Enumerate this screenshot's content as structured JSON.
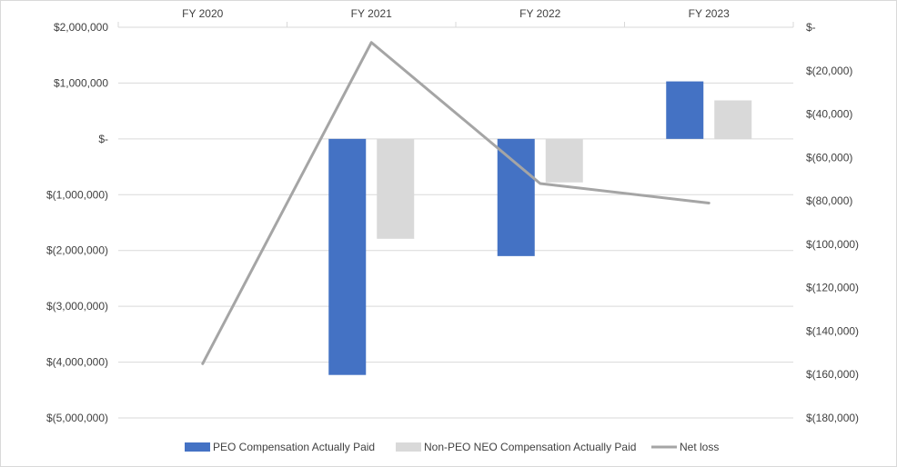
{
  "chart_data": {
    "type": "bar",
    "categories": [
      "FY 2020",
      "FY 2021",
      "FY 2022",
      "FY 2023"
    ],
    "series": [
      {
        "name": "PEO Compensation Actually Paid",
        "kind": "bar",
        "axis": "left",
        "color": "#4472C4",
        "values": [
          null,
          -4230000,
          -2100000,
          1030000
        ]
      },
      {
        "name": "Non-PEO NEO Compensation Actually Paid",
        "kind": "bar",
        "axis": "left",
        "color": "#D9D9D9",
        "values": [
          null,
          -1790000,
          -780000,
          690000
        ]
      },
      {
        "name": "Net loss",
        "kind": "line",
        "axis": "right",
        "color": "#A5A5A5",
        "values": [
          -155000,
          -7000,
          -72000,
          -81000
        ]
      }
    ],
    "left_axis": {
      "ylim": [
        -5000000,
        2000000
      ],
      "ticks": [
        2000000,
        1000000,
        0,
        -1000000,
        -2000000,
        -3000000,
        -4000000,
        -5000000
      ],
      "tick_labels": [
        "$2,000,000",
        "$1,000,000",
        "$-",
        "$(1,000,000)",
        "$(2,000,000)",
        "$(3,000,000)",
        "$(4,000,000)",
        "$(5,000,000)"
      ]
    },
    "right_axis": {
      "ylim": [
        -180000,
        0
      ],
      "ticks": [
        0,
        -20000,
        -40000,
        -60000,
        -80000,
        -100000,
        -120000,
        -140000,
        -160000,
        -180000
      ],
      "tick_labels": [
        "$-",
        "$(20,000)",
        "$(40,000)",
        "$(60,000)",
        "$(80,000)",
        "$(100,000)",
        "$(120,000)",
        "$(140,000)",
        "$(160,000)",
        "$(180,000)"
      ]
    },
    "category_axis_position": "top",
    "grid": true,
    "legend_position": "bottom"
  }
}
